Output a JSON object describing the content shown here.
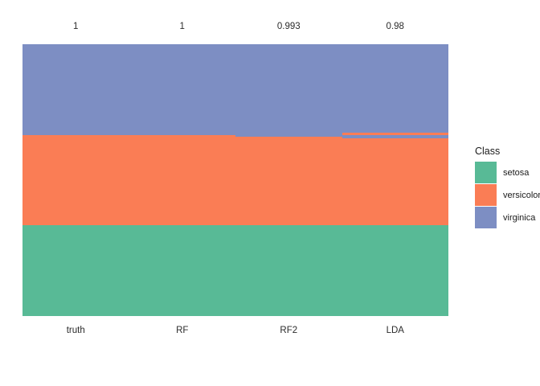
{
  "chart_data": {
    "type": "bar",
    "subtype": "stacked-class-membership",
    "legend_title": "Class",
    "legend_position": "right",
    "grid": "off",
    "total_per_column": 150,
    "classes": [
      {
        "name": "setosa",
        "color": "#58BA96"
      },
      {
        "name": "versicolor",
        "color": "#FA7D55"
      },
      {
        "name": "virginica",
        "color": "#7D8EC3"
      }
    ],
    "categories": [
      "truth",
      "RF",
      "RF2",
      "LDA"
    ],
    "top_annotations": [
      "1",
      "1",
      "0.993",
      "0.98"
    ],
    "columns": [
      {
        "label": "truth",
        "accuracy_label": "1",
        "segments_bottom_up": [
          {
            "class": "setosa",
            "count": 50
          },
          {
            "class": "versicolor",
            "count": 50
          },
          {
            "class": "virginica",
            "count": 50
          }
        ]
      },
      {
        "label": "RF",
        "accuracy_label": "1",
        "segments_bottom_up": [
          {
            "class": "setosa",
            "count": 50
          },
          {
            "class": "versicolor",
            "count": 50
          },
          {
            "class": "virginica",
            "count": 50
          }
        ]
      },
      {
        "label": "RF2",
        "accuracy_label": "0.993",
        "segments_bottom_up": [
          {
            "class": "setosa",
            "count": 50
          },
          {
            "class": "versicolor",
            "count": 49
          },
          {
            "class": "virginica",
            "count": 51
          }
        ]
      },
      {
        "label": "LDA",
        "accuracy_label": "0.98",
        "segments_bottom_up": [
          {
            "class": "setosa",
            "count": 50
          },
          {
            "class": "versicolor",
            "count": 48
          },
          {
            "class": "virginica",
            "count": 2
          },
          {
            "class": "versicolor",
            "count": 1
          },
          {
            "class": "virginica",
            "count": 49
          }
        ]
      }
    ]
  }
}
